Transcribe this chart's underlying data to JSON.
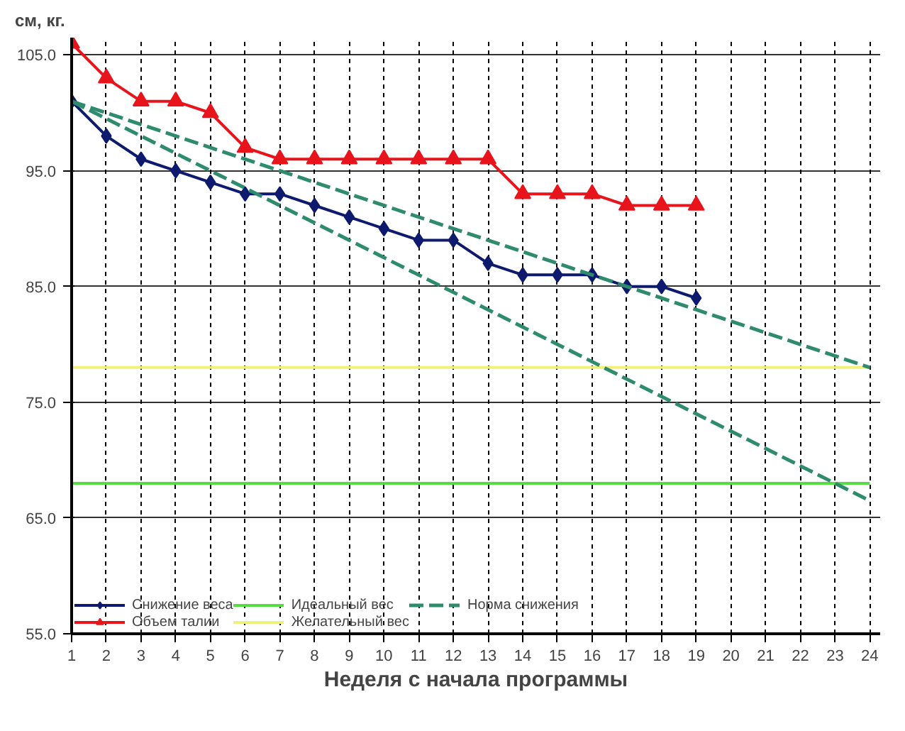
{
  "chart_data": {
    "type": "line",
    "ylabel": "см, кг.",
    "xlabel": "Неделя с начала программы",
    "xlim": [
      1,
      24.3
    ],
    "xticks": [
      1,
      2,
      3,
      4,
      5,
      6,
      7,
      8,
      9,
      10,
      11,
      12,
      13,
      14,
      15,
      16,
      17,
      18,
      19,
      20,
      21,
      22,
      23,
      24
    ],
    "ylim": [
      55,
      106.5
    ],
    "yticks": [
      {
        "value": 55,
        "label": "55.0"
      },
      {
        "value": 65,
        "label": "65.0"
      },
      {
        "value": 75,
        "label": "75.0"
      },
      {
        "value": 85,
        "label": "85.0"
      },
      {
        "value": 95,
        "label": "95.0"
      },
      {
        "value": 105,
        "label": "105.0"
      }
    ],
    "grid": true,
    "legend": "bottom left",
    "series": [
      {
        "name": "Снижение веса",
        "color": "#0d1a6e",
        "marker": "diamond",
        "x": [
          1,
          2,
          3,
          4,
          5,
          6,
          7,
          8,
          9,
          10,
          11,
          12,
          13,
          14,
          15,
          16,
          17,
          18,
          19
        ],
        "values": [
          101,
          98,
          96,
          95,
          94,
          93,
          93,
          92,
          91,
          90,
          89,
          89,
          87,
          86,
          86,
          86,
          85,
          85,
          84
        ]
      },
      {
        "name": "Объем талии",
        "color": "#e8141c",
        "marker": "triangle",
        "x": [
          1,
          2,
          3,
          4,
          5,
          6,
          7,
          8,
          9,
          10,
          11,
          12,
          13,
          14,
          15,
          16,
          17,
          18,
          19
        ],
        "values": [
          106,
          103,
          101,
          101,
          100,
          97,
          96,
          96,
          96,
          96,
          96,
          96,
          96,
          93,
          93,
          93,
          92,
          92,
          92
        ]
      },
      {
        "name": "Идеальный вес",
        "color": "#55dd44",
        "marker": "none",
        "x": [
          1,
          24
        ],
        "values": [
          68,
          68
        ]
      },
      {
        "name": "Желательный вес",
        "color": "#f0f07a",
        "marker": "none",
        "x": [
          1,
          24
        ],
        "values": [
          78,
          78
        ]
      },
      {
        "name": "Норма снижения",
        "color": "#2e8b6e",
        "marker": "none",
        "line_style": "dashed",
        "x": [
          1,
          24
        ],
        "values": [
          101,
          78
        ]
      },
      {
        "color": "#2e8b6e",
        "marker": "none",
        "line_style": "dashed",
        "x": [
          1,
          24
        ],
        "values": [
          101,
          66.5
        ]
      }
    ]
  }
}
